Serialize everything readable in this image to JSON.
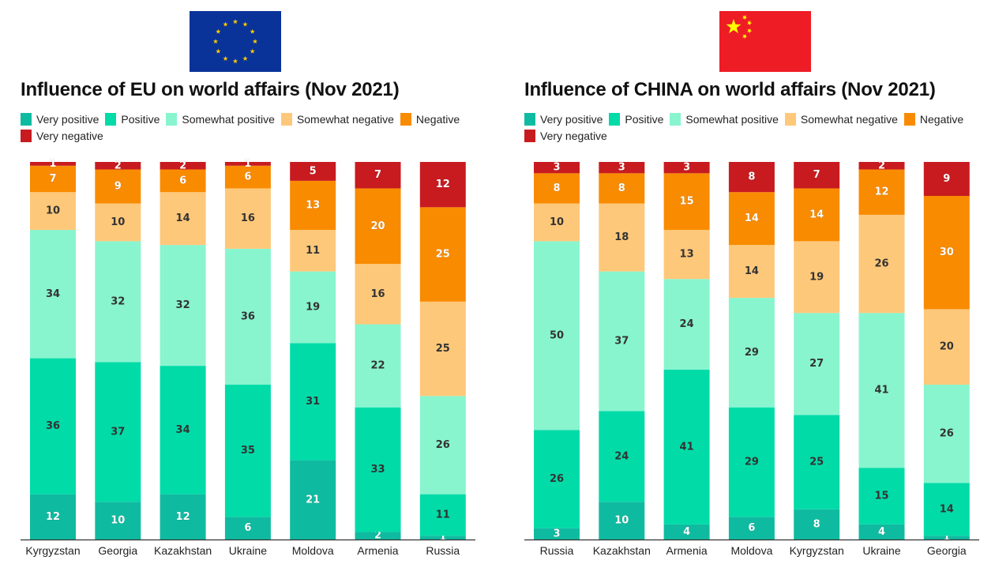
{
  "colors": {
    "very_positive": "#0fbba0",
    "positive": "#00dba8",
    "somewhat_positive": "#88f5cf",
    "somewhat_negative": "#fec87a",
    "negative": "#f98b00",
    "very_negative": "#c81b1f",
    "axis": "#333333",
    "eu_flag_blue": "#0a3399",
    "eu_flag_star": "#ffcc00",
    "cn_flag_red": "#ee1c25",
    "cn_flag_star": "#ffff00"
  },
  "chart_data": [
    {
      "type": "bar",
      "stacked": true,
      "orientation": "vertical",
      "title": "Influence of EU on world affairs (Nov 2021)",
      "flag": "eu-flag",
      "xlabel": "",
      "ylabel": "",
      "ylim": [
        0,
        100
      ],
      "grid": false,
      "legend_position": "top-left",
      "categories": [
        "Kyrgyzstan",
        "Georgia",
        "Kazakhstan",
        "Ukraine",
        "Moldova",
        "Armenia",
        "Russia"
      ],
      "series": [
        {
          "name": "Very positive",
          "key": "very_positive",
          "values": [
            12,
            10,
            12,
            6,
            21,
            2,
            1
          ]
        },
        {
          "name": "Positive",
          "key": "positive",
          "values": [
            36,
            37,
            34,
            35,
            31,
            33,
            11
          ]
        },
        {
          "name": "Somewhat positive",
          "key": "somewhat_positive",
          "values": [
            34,
            32,
            32,
            36,
            19,
            22,
            26
          ]
        },
        {
          "name": "Somewhat negative",
          "key": "somewhat_negative",
          "values": [
            10,
            10,
            14,
            16,
            11,
            16,
            25
          ]
        },
        {
          "name": "Negative",
          "key": "negative",
          "values": [
            7,
            9,
            6,
            6,
            13,
            20,
            25
          ]
        },
        {
          "name": "Very negative",
          "key": "very_negative",
          "values": [
            1,
            2,
            2,
            1,
            5,
            7,
            12
          ]
        }
      ]
    },
    {
      "type": "bar",
      "stacked": true,
      "orientation": "vertical",
      "title": "Influence of CHINA on world affairs (Nov 2021)",
      "flag": "china-flag",
      "xlabel": "",
      "ylabel": "",
      "ylim": [
        0,
        100
      ],
      "grid": false,
      "legend_position": "top-left",
      "categories": [
        "Russia",
        "Kazakhstan",
        "Armenia",
        "Moldova",
        "Kyrgyzstan",
        "Ukraine",
        "Georgia"
      ],
      "series": [
        {
          "name": "Very positive",
          "key": "very_positive",
          "values": [
            3,
            10,
            4,
            6,
            8,
            4,
            1
          ]
        },
        {
          "name": "Positive",
          "key": "positive",
          "values": [
            26,
            24,
            41,
            29,
            25,
            15,
            14
          ]
        },
        {
          "name": "Somewhat positive",
          "key": "somewhat_positive",
          "values": [
            50,
            37,
            24,
            29,
            27,
            41,
            26
          ]
        },
        {
          "name": "Somewhat negative",
          "key": "somewhat_negative",
          "values": [
            10,
            18,
            13,
            14,
            19,
            26,
            20
          ]
        },
        {
          "name": "Negative",
          "key": "negative",
          "values": [
            8,
            8,
            15,
            14,
            14,
            12,
            30
          ]
        },
        {
          "name": "Very negative",
          "key": "very_negative",
          "values": [
            3,
            3,
            3,
            8,
            7,
            2,
            9
          ]
        }
      ]
    }
  ]
}
